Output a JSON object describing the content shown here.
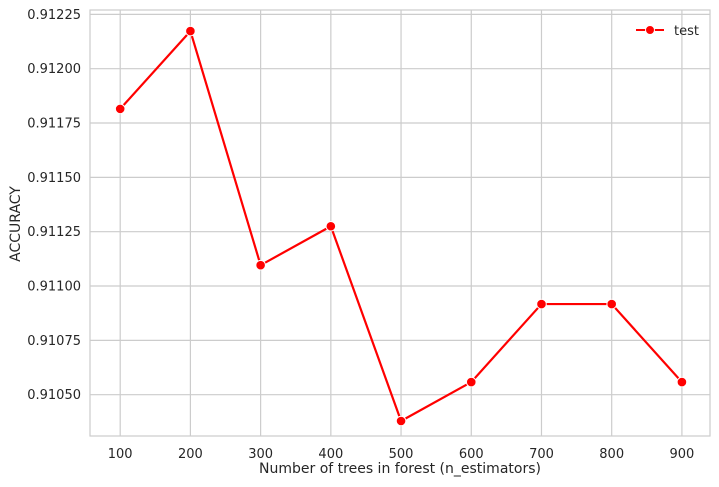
{
  "chart_data": {
    "type": "line",
    "title": "",
    "xlabel": "Number of trees in forest (n_estimators)",
    "ylabel": "ACCURACY",
    "x": [
      100,
      200,
      300,
      400,
      500,
      600,
      700,
      800,
      900
    ],
    "x_ticks": [
      "100",
      "200",
      "300",
      "400",
      "500",
      "600",
      "700",
      "800",
      "900"
    ],
    "y_ticks": [
      "0.91050",
      "0.91075",
      "0.91100",
      "0.91125",
      "0.91150",
      "0.91175",
      "0.91200",
      "0.91225"
    ],
    "xlim": [
      57,
      940
    ],
    "ylim": [
      0.91031,
      0.91227
    ],
    "grid": true,
    "legend_position": "top-right",
    "series": [
      {
        "name": "test",
        "color": "#ff0000",
        "marker": "circle",
        "values": [
          0.911815,
          0.912173,
          0.911096,
          0.911275,
          0.910379,
          0.910558,
          0.910917,
          0.910917,
          0.910558
        ]
      }
    ]
  }
}
